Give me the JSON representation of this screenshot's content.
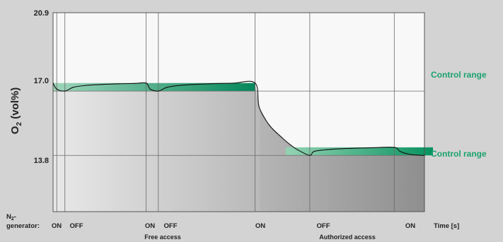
{
  "chart_data": {
    "type": "line",
    "ylabel": "O₂ (vol%)",
    "ylabel_main": "O",
    "ylabel_sub": "2",
    "ylabel_tail": " (vol%)",
    "xlabel": "Time [s]",
    "yticks": [
      {
        "value": 20.9,
        "label": "20.9"
      },
      {
        "value": 17.0,
        "label": "17.0"
      },
      {
        "value": 13.8,
        "label": "13.8"
      }
    ],
    "n2_label_line1": "N",
    "n2_label_sub": "2",
    "n2_label_dash": "-",
    "n2_label_line2": "generator:",
    "events": [
      {
        "label": "ON",
        "t": 0.9
      },
      {
        "label": "OFF",
        "t": 2.9
      },
      {
        "label": "ON",
        "t": 22.8
      },
      {
        "label": "OFF",
        "t": 25.8
      },
      {
        "label": "ON",
        "t": 49.5
      },
      {
        "label": "OFF",
        "t": 62.9
      },
      {
        "label": "ON",
        "t": 83.6
      }
    ],
    "phases": [
      {
        "label": "Free access",
        "t_start": 0,
        "t_end": 50.5
      },
      {
        "label": "Authorized access",
        "t_start": 50.5,
        "t_end": 91
      }
    ],
    "control_ranges": [
      {
        "label": "Control range",
        "low": 17.0,
        "high": 17.4,
        "t_start": 0,
        "t_end": 49.5
      },
      {
        "label": "Control range",
        "low": 13.8,
        "high": 14.2,
        "t_start": 57,
        "t_end": 91
      }
    ],
    "series": [
      {
        "x": [
          0,
          0.9,
          2.9,
          5,
          8,
          12,
          16,
          20,
          22.8,
          23.8,
          25.8,
          28,
          32,
          38,
          44,
          49.5,
          50.5,
          53,
          56,
          58,
          60,
          62.9,
          64,
          68,
          73,
          78,
          83.6,
          85,
          87,
          89.5,
          91
        ],
        "y": [
          17.4,
          17.1,
          17.0,
          17.19,
          17.28,
          17.33,
          17.36,
          17.38,
          17.4,
          17.1,
          17.0,
          17.19,
          17.3,
          17.36,
          17.39,
          17.4,
          16.2,
          15.3,
          14.7,
          14.35,
          14.07,
          13.8,
          14.0,
          14.1,
          14.15,
          14.18,
          14.2,
          14.0,
          13.87,
          13.81,
          13.8
        ]
      }
    ],
    "xlim": [
      0,
      91
    ],
    "ylim": [
      11.0,
      20.9
    ],
    "colors": {
      "control_dark": "#04875a",
      "control_light": "#8fcfb0",
      "label_green": "#1aa26e",
      "plot_white": "#f8f8f8"
    }
  }
}
